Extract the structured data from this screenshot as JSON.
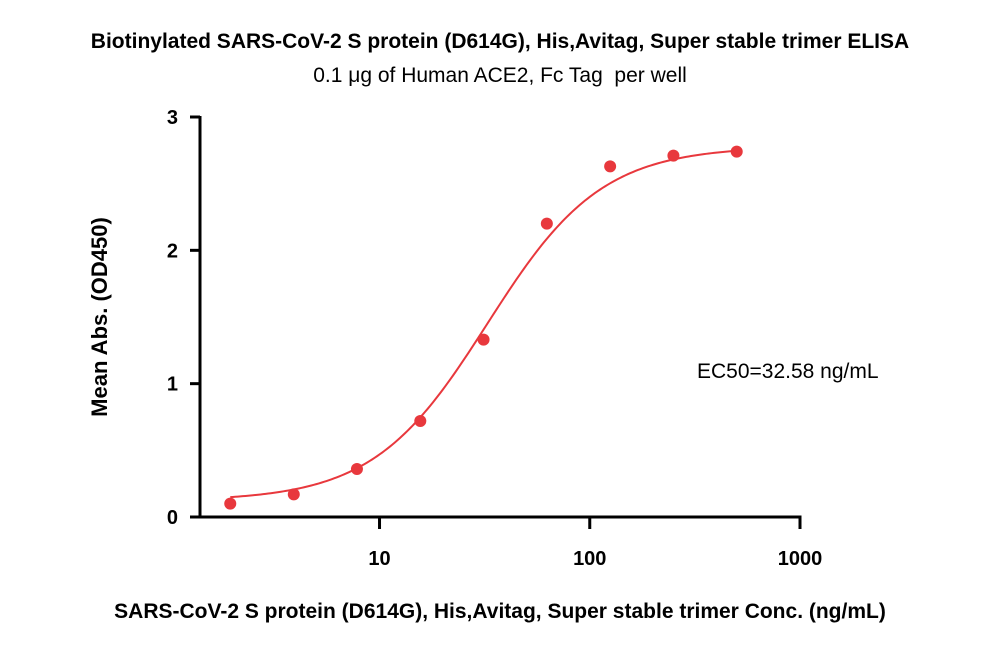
{
  "chart_data": {
    "type": "scatter",
    "title": "Biotinylated SARS-CoV-2 S protein (D614G), His,Avitag, Super stable trimer ELISA",
    "subtitle": "0.1 μg of Human ACE2, Fc Tag  per well",
    "xlabel": "SARS-CoV-2 S protein (D614G), His,Avitag, Super stable trimer Conc. (ng/mL)",
    "ylabel": "Mean Abs. (OD450)",
    "xscale": "log",
    "xlim": [
      1.4,
      1000
    ],
    "ylim": [
      0,
      3
    ],
    "xticks": [
      10,
      100,
      1000
    ],
    "xtick_labels": [
      "10",
      "100",
      "1000"
    ],
    "yticks": [
      0,
      1,
      2,
      3
    ],
    "ytick_labels": [
      "0",
      "1",
      "2",
      "3"
    ],
    "grid": false,
    "annotation": "EC50=32.58 ng/mL",
    "color": "#e8383d",
    "series": [
      {
        "points": [
          {
            "x": 1.95,
            "y": 0.1
          },
          {
            "x": 3.91,
            "y": 0.17
          },
          {
            "x": 7.81,
            "y": 0.36
          },
          {
            "x": 15.63,
            "y": 0.72
          },
          {
            "x": 31.25,
            "y": 1.33
          },
          {
            "x": 62.5,
            "y": 2.2
          },
          {
            "x": 125,
            "y": 2.63
          },
          {
            "x": 250,
            "y": 2.71
          },
          {
            "x": 500,
            "y": 2.74
          }
        ],
        "fit": {
          "model": "4PL",
          "bottom": 0.12,
          "top": 2.78,
          "ec50": 32.58,
          "hill": 1.6
        }
      }
    ]
  }
}
